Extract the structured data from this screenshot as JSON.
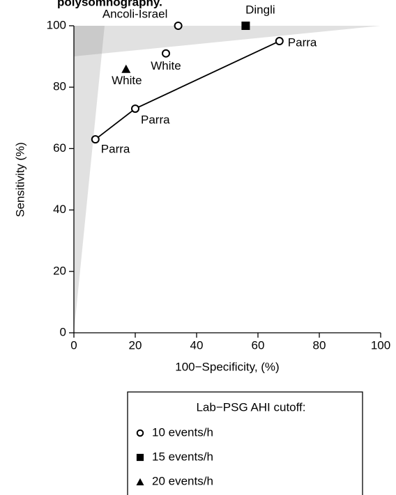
{
  "chart_data": {
    "type": "scatter",
    "title": "polysomnography.",
    "x_label": "100−Specificity, (%)",
    "y_label": "Sensitivity (%)",
    "legend_title": "Lab−PSG AHI cutoff:",
    "xlim": [
      0,
      100
    ],
    "xticks": [
      0,
      20,
      40,
      60,
      80,
      100
    ],
    "ylim": [
      0,
      100
    ],
    "yticks": [
      0,
      20,
      40,
      60,
      80,
      100
    ],
    "series": [
      {
        "name": "10 events/h",
        "marker": "circle",
        "x": [
          34,
          30,
          67,
          20,
          7
        ],
        "values": [
          100,
          91,
          95,
          73,
          63
        ],
        "labels": [
          "Ancoli-Israel",
          "White",
          "Parra",
          "Parra",
          "Parra"
        ]
      },
      {
        "name": "15 events/h",
        "marker": "square",
        "x": [
          56
        ],
        "values": [
          100
        ],
        "labels": [
          "Dingli"
        ]
      },
      {
        "name": "20 events/h",
        "marker": "triangle",
        "x": [
          17
        ],
        "values": [
          86
        ],
        "labels": [
          "White"
        ]
      }
    ]
  }
}
